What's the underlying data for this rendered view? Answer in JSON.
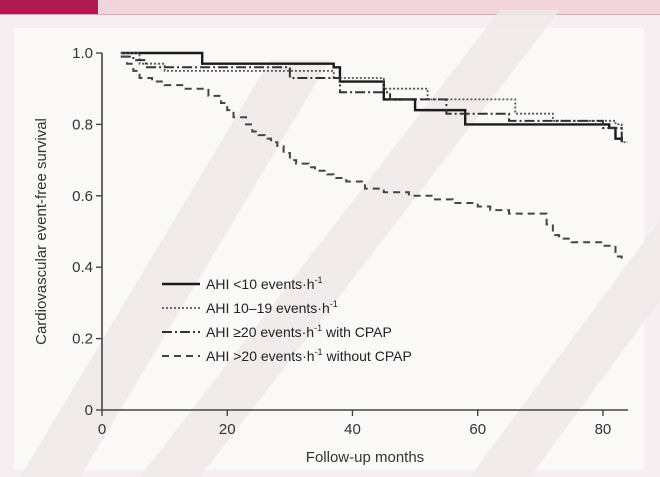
{
  "header": {
    "accent_color": "#b01b51",
    "bar_color": "#f2d4dd"
  },
  "chart_data": {
    "type": "line",
    "subtype": "kaplan-meier-step",
    "title": "",
    "xlabel": "Follow-up months",
    "ylabel": "Cardiovascular event-free survival",
    "xlim": [
      0,
      84
    ],
    "ylim": [
      0,
      1.0
    ],
    "x_ticks": [
      0,
      20,
      40,
      60,
      80
    ],
    "y_ticks": [
      0,
      0.2,
      0.4,
      0.6,
      0.8,
      1.0
    ],
    "y_tick_labels": [
      "0",
      "0.2",
      "0.4",
      "0.6",
      "0.8",
      "1.0"
    ],
    "grid": false,
    "legend_position": "bottom-left",
    "series": [
      {
        "name": "AHI <10 events·h⁻¹",
        "sup": "",
        "line_style": "solid",
        "color": "#1a1a1a",
        "x": [
          3,
          16,
          37,
          38,
          45,
          50,
          58,
          70,
          81,
          82,
          83
        ],
        "y": [
          1.0,
          0.97,
          0.96,
          0.92,
          0.87,
          0.84,
          0.8,
          0.8,
          0.79,
          0.76,
          0.75
        ]
      },
      {
        "name": "AHI 10–19 events·h⁻¹",
        "sup": "",
        "line_style": "dotted",
        "color": "#555555",
        "x": [
          3,
          6,
          10,
          37,
          45,
          52,
          66,
          72,
          82,
          83
        ],
        "y": [
          1.0,
          0.97,
          0.95,
          0.93,
          0.9,
          0.87,
          0.83,
          0.81,
          0.8,
          0.75
        ],
        "end_x": 84
      },
      {
        "name": "AHI ≥20 events·h⁻¹ with CPAP",
        "sup": "",
        "line_style": "dashdot",
        "color": "#333333",
        "x": [
          3,
          5,
          7,
          30,
          38,
          46,
          55,
          65,
          80,
          83
        ],
        "y": [
          0.99,
          0.98,
          0.96,
          0.93,
          0.89,
          0.87,
          0.83,
          0.81,
          0.79,
          0.75
        ]
      },
      {
        "name": "AHI >20 events·h⁻¹ without CPAP",
        "sup": "",
        "line_style": "dashed",
        "color": "#444444",
        "x": [
          3,
          4,
          5,
          6,
          8,
          10,
          13,
          17,
          19,
          20,
          21,
          23,
          24,
          25,
          26,
          27,
          28,
          29,
          30,
          31,
          33,
          34,
          36,
          37,
          39,
          42,
          45,
          49,
          53,
          56,
          60,
          62,
          65,
          71,
          72,
          73,
          75,
          80,
          82,
          83
        ],
        "y": [
          0.99,
          0.97,
          0.95,
          0.93,
          0.92,
          0.91,
          0.9,
          0.88,
          0.86,
          0.84,
          0.82,
          0.8,
          0.78,
          0.77,
          0.76,
          0.75,
          0.74,
          0.72,
          0.7,
          0.69,
          0.68,
          0.67,
          0.66,
          0.65,
          0.64,
          0.62,
          0.61,
          0.6,
          0.59,
          0.58,
          0.57,
          0.56,
          0.55,
          0.52,
          0.49,
          0.48,
          0.47,
          0.46,
          0.43,
          0.41
        ]
      }
    ],
    "legend": [
      {
        "label": "AHI <10 events·h",
        "sup": "-1"
      },
      {
        "label": "AHI 10–19 events·h",
        "sup": "-1"
      },
      {
        "label": "AHI ≥20 events·h",
        "sup": "-1",
        "suffix": " with CPAP"
      },
      {
        "label": "AHI >20 events·h",
        "sup": "-1",
        "suffix": " without CPAP"
      }
    ]
  }
}
